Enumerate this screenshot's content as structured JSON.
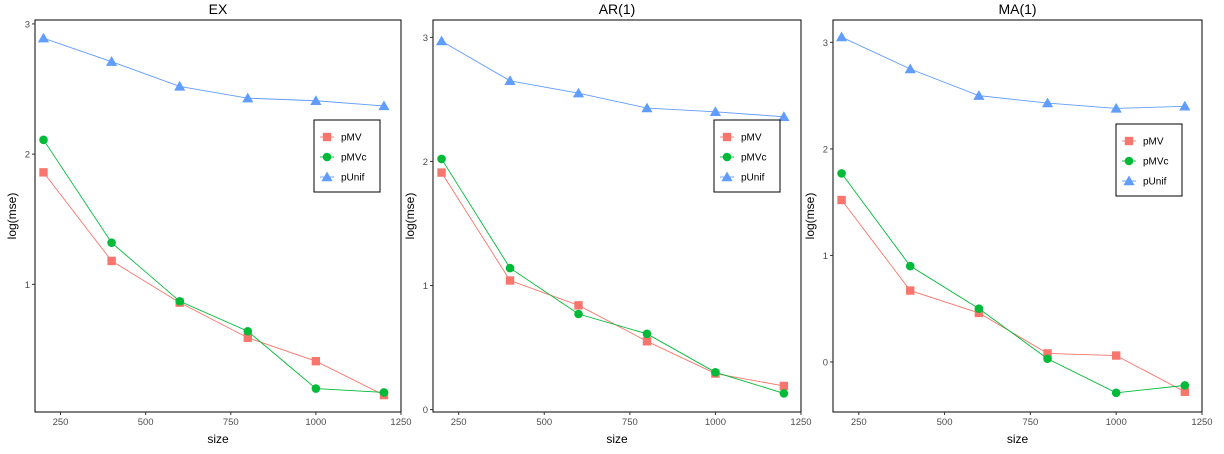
{
  "colors": {
    "pMV": "#F8766D",
    "pMVc": "#00BA38",
    "pUnif": "#619CFF"
  },
  "chart_data": [
    {
      "type": "line",
      "title": "EX",
      "xlabel": "size",
      "ylabel": "log(mse)",
      "x": [
        200,
        400,
        600,
        800,
        1000,
        1200
      ],
      "xticks": [
        250,
        500,
        750,
        1000,
        1250
      ],
      "yticks": [
        1,
        2,
        3
      ],
      "xlim": [
        175,
        1250
      ],
      "ylim": [
        0.02,
        3.03
      ],
      "legend_position": "right",
      "grid": false,
      "series": [
        {
          "name": "pMV",
          "marker": "square",
          "values": [
            1.86,
            1.18,
            0.86,
            0.59,
            0.41,
            0.15
          ]
        },
        {
          "name": "pMVc",
          "marker": "circle",
          "values": [
            2.11,
            1.32,
            0.87,
            0.64,
            0.2,
            0.17
          ]
        },
        {
          "name": "pUnif",
          "marker": "triangle",
          "values": [
            2.89,
            2.71,
            2.52,
            2.43,
            2.41,
            2.37
          ]
        }
      ]
    },
    {
      "type": "line",
      "title": "AR(1)",
      "xlabel": "size",
      "ylabel": "log(mse)",
      "x": [
        200,
        400,
        600,
        800,
        1000,
        1200
      ],
      "xticks": [
        250,
        500,
        750,
        1000,
        1250
      ],
      "yticks": [
        0,
        1,
        2,
        3
      ],
      "xlim": [
        175,
        1250
      ],
      "ylim": [
        -0.02,
        3.14
      ],
      "legend_position": "right",
      "grid": false,
      "series": [
        {
          "name": "pMV",
          "marker": "square",
          "values": [
            1.91,
            1.04,
            0.84,
            0.55,
            0.29,
            0.19
          ]
        },
        {
          "name": "pMVc",
          "marker": "circle",
          "values": [
            2.02,
            1.14,
            0.77,
            0.61,
            0.3,
            0.13
          ]
        },
        {
          "name": "pUnif",
          "marker": "triangle",
          "values": [
            2.97,
            2.65,
            2.55,
            2.43,
            2.4,
            2.36
          ]
        }
      ]
    },
    {
      "type": "line",
      "title": "MA(1)",
      "xlabel": "size",
      "ylabel": "log(mse)",
      "x": [
        200,
        400,
        600,
        800,
        1000,
        1200
      ],
      "xticks": [
        250,
        500,
        750,
        1000,
        1250
      ],
      "yticks": [
        0,
        1,
        2,
        3
      ],
      "xlim": [
        175,
        1250
      ],
      "ylim": [
        -0.47,
        3.21
      ],
      "legend_position": "right",
      "grid": false,
      "series": [
        {
          "name": "pMV",
          "marker": "square",
          "values": [
            1.52,
            0.67,
            0.46,
            0.08,
            0.06,
            -0.28
          ]
        },
        {
          "name": "pMVc",
          "marker": "circle",
          "values": [
            1.77,
            0.9,
            0.5,
            0.03,
            -0.29,
            -0.22
          ]
        },
        {
          "name": "pUnif",
          "marker": "triangle",
          "values": [
            3.05,
            2.75,
            2.5,
            2.43,
            2.38,
            2.4
          ]
        }
      ]
    }
  ]
}
